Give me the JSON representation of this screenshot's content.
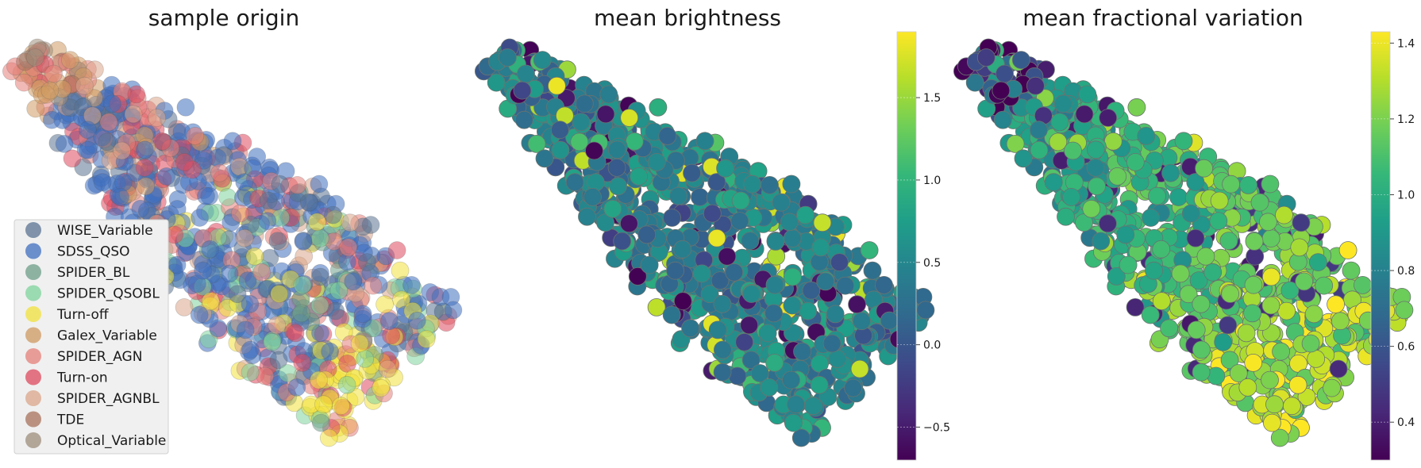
{
  "chart_data": [
    {
      "type": "scatter",
      "title": "sample origin",
      "axes_visible": false,
      "legend_placement": "lower-left",
      "series": [
        {
          "name": "WISE_Variable",
          "color": "#5a7391"
        },
        {
          "name": "SDSS_QSO",
          "color": "#3f6fbf"
        },
        {
          "name": "SPIDER_BL",
          "color": "#6e9e88"
        },
        {
          "name": "SPIDER_QSOBL",
          "color": "#7fd49c"
        },
        {
          "name": "Turn-off",
          "color": "#f2e23c"
        },
        {
          "name": "Galex_Variable",
          "color": "#cf9a62"
        },
        {
          "name": "SPIDER_AGN",
          "color": "#e5807a"
        },
        {
          "name": "Turn-on",
          "color": "#de4a5e"
        },
        {
          "name": "SPIDER_AGNBL",
          "color": "#dba68a"
        },
        {
          "name": "TDE",
          "color": "#a8715c"
        },
        {
          "name": "Optical_Variable",
          "color": "#9e8e7c"
        }
      ]
    },
    {
      "type": "scatter",
      "title": "mean brightness",
      "axes_visible": false,
      "colormap": "viridis",
      "colorbar": {
        "min": -0.7,
        "max": 1.9,
        "ticks": [
          "−0.5",
          "0.0",
          "0.5",
          "1.0",
          "1.5"
        ],
        "tick_values": [
          -0.5,
          0.0,
          0.5,
          1.0,
          1.5
        ]
      }
    },
    {
      "type": "scatter",
      "title": "mean fractional variation",
      "axes_visible": false,
      "colormap": "viridis",
      "colorbar": {
        "min": 0.3,
        "max": 1.43,
        "ticks": [
          "0.4",
          "0.6",
          "0.8",
          "1.0",
          "1.2",
          "1.4"
        ],
        "tick_values": [
          0.4,
          0.6,
          0.8,
          1.0,
          1.2,
          1.4
        ]
      }
    }
  ]
}
